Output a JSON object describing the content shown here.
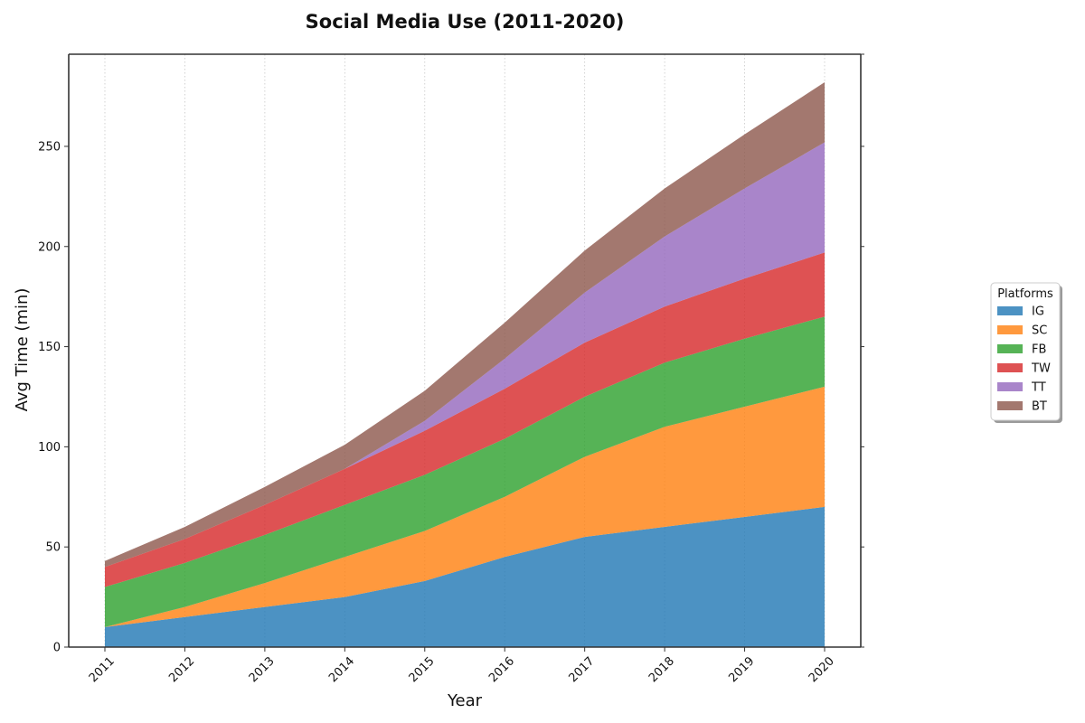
{
  "chart_data": {
    "type": "area",
    "stacked": true,
    "title": "Social Media Use (2011-2020)",
    "xlabel": "Year",
    "ylabel": "Avg Time (min)",
    "x": [
      "2011",
      "2012",
      "2013",
      "2014",
      "2015",
      "2016",
      "2017",
      "2018",
      "2019",
      "2020"
    ],
    "ylim": [
      0,
      296
    ],
    "yticks": [
      0,
      50,
      100,
      150,
      200,
      250
    ],
    "grid": "vertical dotted",
    "legend_title": "Platforms",
    "legend_position": "right",
    "series": [
      {
        "name": "IG",
        "color": "#1f77b4",
        "values": [
          10,
          15,
          20,
          25,
          33,
          45,
          55,
          60,
          65,
          70
        ]
      },
      {
        "name": "SC",
        "color": "#ff7f0e",
        "values": [
          0,
          5,
          12,
          20,
          25,
          30,
          40,
          50,
          55,
          60
        ]
      },
      {
        "name": "FB",
        "color": "#2ca02c",
        "values": [
          20,
          22,
          24,
          26,
          28,
          29,
          30,
          32,
          34,
          35
        ]
      },
      {
        "name": "TW",
        "color": "#d62728",
        "values": [
          10,
          12,
          15,
          18,
          22,
          25,
          27,
          28,
          30,
          32
        ]
      },
      {
        "name": "TT",
        "color": "#9467bd",
        "values": [
          0,
          0,
          0,
          0,
          5,
          15,
          25,
          35,
          45,
          55
        ]
      },
      {
        "name": "BT",
        "color": "#8c564b",
        "values": [
          3,
          6,
          9,
          12,
          15,
          18,
          21,
          24,
          27,
          30
        ]
      }
    ]
  }
}
